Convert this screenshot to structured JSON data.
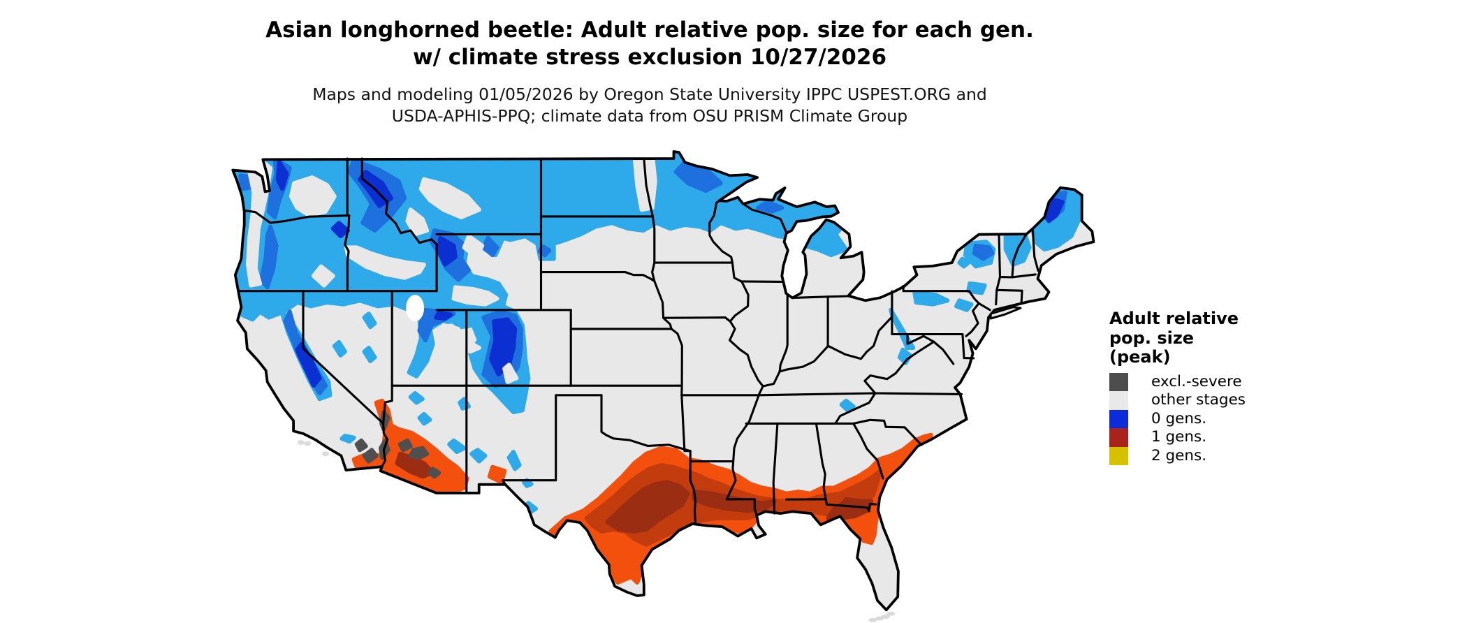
{
  "title": {
    "line1": "Asian longhorned beetle: Adult relative pop. size for each gen.",
    "line2": "w/ climate stress exclusion 10/27/2026"
  },
  "subtitle": {
    "line1": "Maps and modeling 01/05/2026 by Oregon State University IPPC USPEST.ORG and",
    "line2": "USDA-APHIS-PPQ; climate data from OSU PRISM Climate Group"
  },
  "legend": {
    "title_lines": [
      "Adult relative",
      "pop. size",
      "(peak)"
    ],
    "items": [
      {
        "label": "excl.-severe",
        "color": "#4d4d4d"
      },
      {
        "label": "other stages",
        "color": "#e9e9e9"
      },
      {
        "label": "0 gens.",
        "color": "#0b2cd8"
      },
      {
        "label": "1 gens.",
        "color": "#a8241a"
      },
      {
        "label": "2 gens.",
        "color": "#d6c100"
      }
    ]
  },
  "palette": {
    "background": "#ffffff",
    "land": "#e8e8e8",
    "border_line": "#000000",
    "cyan": "#2ea9ea",
    "blue_mid": "#1d70de",
    "blue_dark": "#0b2fd0",
    "orange": "#f3500e",
    "red_mid": "#c23c0e",
    "red_dark": "#9a2d12",
    "severe_gray": "#4f4f4f",
    "water": "#ffffff"
  },
  "map_data": {
    "type": "choropleth-raster",
    "region": "Contiguous United States",
    "classes": [
      "excl.-severe",
      "other stages",
      "0 gens.",
      "1 gens.",
      "2 gens."
    ],
    "zones": [
      {
        "class": "0 gens.",
        "color_family": "blues",
        "areas": "Pacific Northwest, Cascades, northern Rockies, Montana, North Dakota, northern Minnesota/Wisconsin/Michigan, Colorado and Utah mountains, Sierra Nevada, Adirondacks, northern New England and Maine"
      },
      {
        "class": "1 gens.",
        "color_family": "orange-red ramp",
        "areas": "central and eastern Texas, Gulf Coast, Louisiana, southern Mississippi/Alabama, southern Georgia, northern Florida, coastal Carolinas, southern Arizona, southeastern California, lower Colorado River valley"
      },
      {
        "class": "excl.-severe",
        "color_family": "dark gray",
        "areas": "lower Colorado River valley, Phoenix/Tucson desert cores"
      },
      {
        "class": "other stages",
        "color_family": "light gray",
        "areas": "remainder of the contiguous US including Great Plains, Midwest, mid-Atlantic, southern Texas tip and southern Florida"
      },
      {
        "class": "2 gens.",
        "color_family": "yellow",
        "areas": "none visible on map"
      }
    ]
  }
}
